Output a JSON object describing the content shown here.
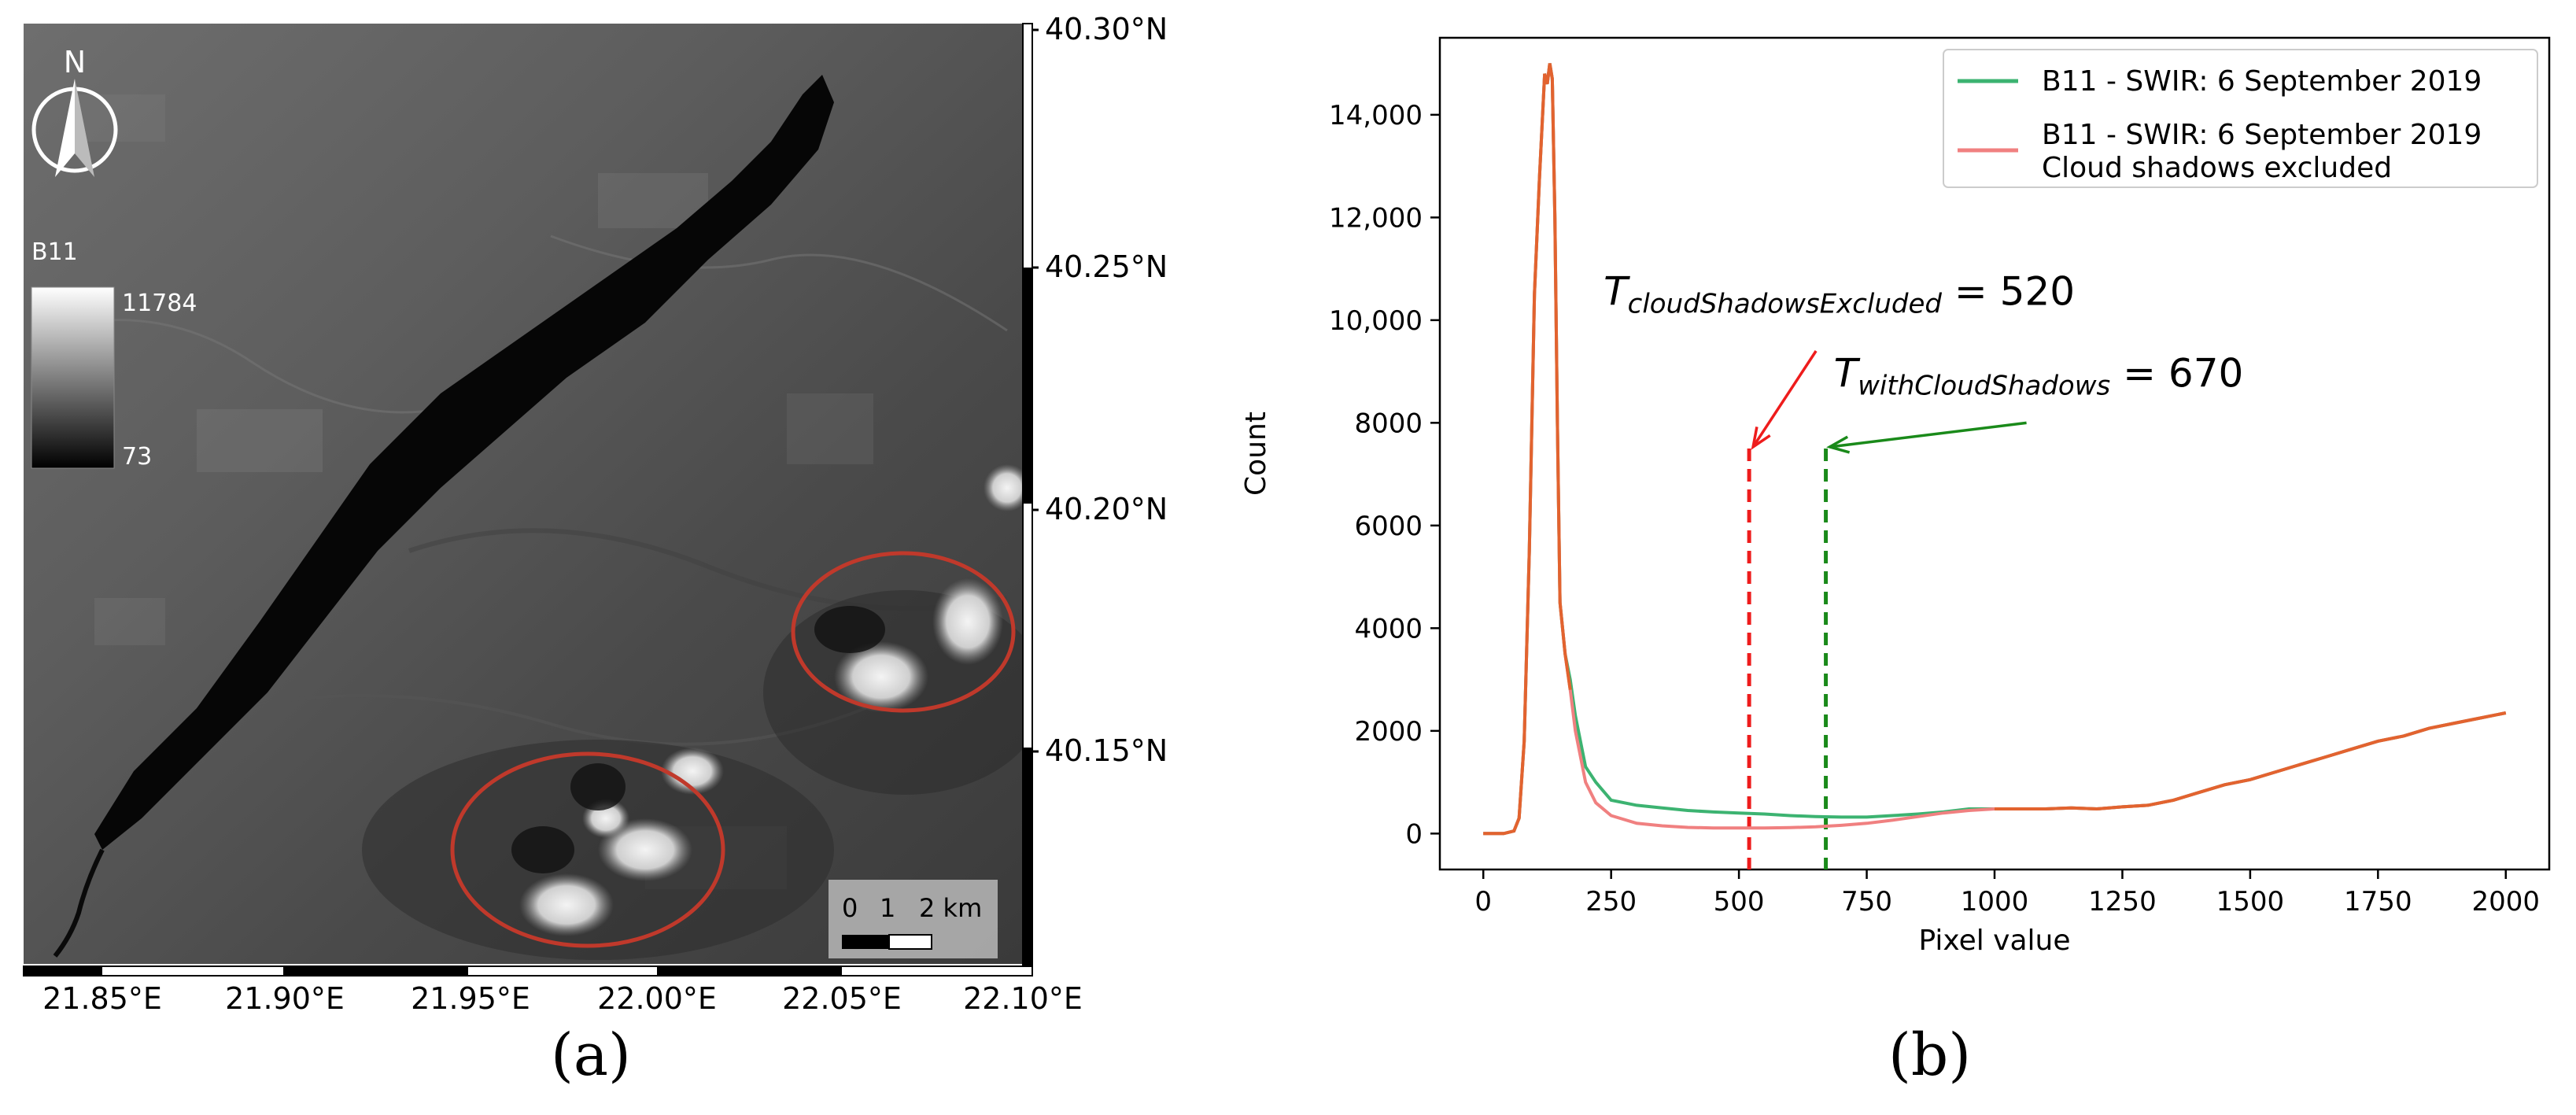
{
  "panel_a": {
    "caption": "(a)",
    "north_label": "N",
    "legend": {
      "band": "B11",
      "max_label": "11784",
      "min_label": "73"
    },
    "lat_ticks": [
      "40.30°N",
      "40.25°N",
      "40.20°N",
      "40.15°N"
    ],
    "lon_ticks": [
      "21.85°E",
      "21.90°E",
      "21.95°E",
      "22.00°E",
      "22.05°E",
      "22.10°E"
    ],
    "scale_bar": {
      "labels": [
        "0",
        "1",
        "2 km"
      ]
    },
    "highlight_color": "#c0392b"
  },
  "panel_b": {
    "caption": "(b)",
    "chart_data": {
      "type": "line",
      "title": "",
      "xlabel": "Pixel value",
      "ylabel": "Count",
      "xlim": [
        -85,
        2085
      ],
      "ylim": [
        -700,
        15500
      ],
      "x_ticks": [
        0,
        250,
        500,
        750,
        1000,
        1250,
        1500,
        1750,
        2000
      ],
      "x_tick_labels": [
        "0",
        "250",
        "500",
        "750",
        "1000",
        "1250",
        "1500",
        "1750",
        "2000"
      ],
      "y_ticks": [
        0,
        2000,
        4000,
        6000,
        8000,
        10000,
        12000,
        14000
      ],
      "y_tick_labels": [
        "0",
        "2000",
        "4000",
        "6000",
        "8000",
        "10,000",
        "12,000",
        "14,000"
      ],
      "grid": false,
      "legend_position": "top-right",
      "series": [
        {
          "name": "B11 - SWIR: 6 September 2019",
          "color": "#3cb371",
          "x": [
            0,
            40,
            60,
            70,
            80,
            90,
            100,
            110,
            120,
            125,
            130,
            135,
            140,
            145,
            150,
            160,
            170,
            180,
            200,
            220,
            250,
            300,
            350,
            400,
            450,
            500,
            550,
            600,
            650,
            700,
            750,
            800,
            850,
            900,
            950,
            1000,
            1050,
            1100,
            1150,
            1200,
            1250,
            1300,
            1350,
            1400,
            1450,
            1500,
            1550,
            1600,
            1650,
            1700,
            1750,
            1800,
            1850,
            1900,
            1950,
            2000
          ],
          "y": [
            0,
            0,
            50,
            300,
            1800,
            5500,
            10500,
            12800,
            14800,
            14600,
            15000,
            14700,
            12000,
            8000,
            4500,
            3500,
            3000,
            2300,
            1300,
            1000,
            650,
            550,
            500,
            450,
            420,
            400,
            380,
            350,
            330,
            320,
            320,
            350,
            380,
            420,
            480,
            480,
            480,
            480,
            500,
            480,
            520,
            550,
            650,
            800,
            950,
            1050,
            1200,
            1350,
            1500,
            1650,
            1800,
            1900,
            2050,
            2150,
            2250,
            2350
          ]
        },
        {
          "name": "B11 - SWIR: 6 September 2019\nCloud shadows excluded",
          "color": "#f08080",
          "x": [
            0,
            40,
            60,
            70,
            80,
            90,
            100,
            110,
            120,
            125,
            130,
            135,
            140,
            145,
            150,
            160,
            170,
            180,
            200,
            220,
            250,
            300,
            350,
            400,
            450,
            500,
            550,
            600,
            650,
            700,
            750,
            800,
            850,
            900,
            950,
            1000,
            1050,
            1100,
            1150,
            1200,
            1250,
            1300,
            1350,
            1400,
            1450,
            1500,
            1550,
            1600,
            1650,
            1700,
            1750,
            1800,
            1850,
            1900,
            1950,
            2000
          ],
          "y": [
            0,
            0,
            50,
            300,
            1800,
            5500,
            10500,
            12800,
            14800,
            14600,
            15000,
            14700,
            12000,
            8000,
            4500,
            3500,
            2800,
            2000,
            1000,
            600,
            350,
            200,
            150,
            120,
            110,
            110,
            110,
            115,
            130,
            160,
            200,
            260,
            330,
            400,
            450,
            480,
            480,
            480,
            500,
            480,
            520,
            550,
            650,
            800,
            950,
            1050,
            1200,
            1350,
            1500,
            1650,
            1800,
            1900,
            2050,
            2150,
            2250,
            2350
          ]
        }
      ],
      "thresholds": [
        {
          "x": 520,
          "color": "#ee1c1c",
          "label_T": "T",
          "label_sub": "cloudShadowsExcluded",
          "label_eq": " = 520"
        },
        {
          "x": 670,
          "color": "#1a8a1a",
          "label_T": "T",
          "label_sub": "withCloudShadows",
          "label_eq": " = 670"
        }
      ]
    }
  }
}
